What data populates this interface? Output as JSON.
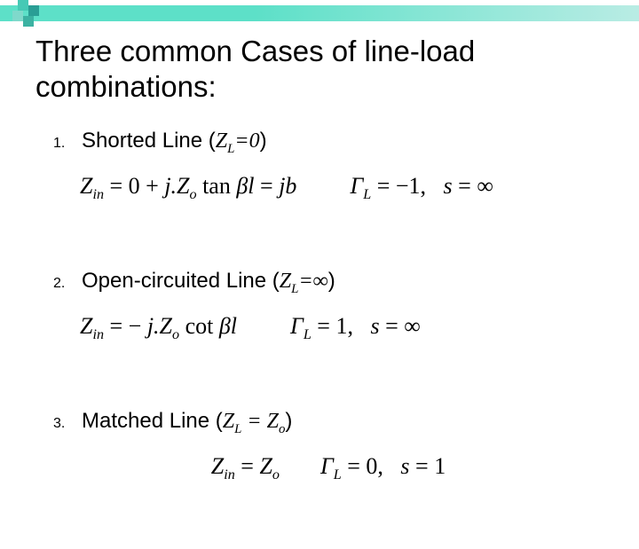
{
  "colors": {
    "bar_gradient_start": "#5de0c8",
    "bar_gradient_end": "#b9ece4",
    "logo_squares": [
      "#46c9b5",
      "#2a9e95",
      "#7fd9cb",
      "#3cb2a2"
    ],
    "text": "#000000",
    "background": "#ffffff"
  },
  "typography": {
    "title_fontsize": 33,
    "list_fontsize": 24,
    "equation_fontsize": 26,
    "number_fontsize": 16,
    "title_family": "Arial",
    "equation_family": "Times New Roman"
  },
  "title": "Three common Cases of line-load combinations:",
  "cases": [
    {
      "number": "1.",
      "label": "Shorted Line",
      "condition_prefix": " (",
      "condition_var": "Z",
      "condition_sub": "L",
      "condition_eq_rhs": "=0",
      "condition_suffix": ")",
      "eq_left_html": "Z<sub>in</sub> <span class='up'>= 0 +</span> j.Z<sub>o</sub> <span class='up'>tan</span> βl <span class='up'>=</span> jb",
      "eq_right_html": "Γ<sub>L</sub> <span class='up'>= −1,</span>&nbsp;&nbsp; s <span class='up'>= ∞</span>"
    },
    {
      "number": "2.",
      "label": "Open-circuited Line",
      "condition_prefix": " (",
      "condition_var": "Z",
      "condition_sub": "L",
      "condition_eq_rhs": "=∞",
      "condition_suffix": ")",
      "eq_left_html": "Z<sub>in</sub> <span class='up'>= −</span> j.Z<sub>o</sub> <span class='up'>cot</span> βl",
      "eq_right_html": "Γ<sub>L</sub> <span class='up'>= 1,</span>&nbsp;&nbsp; s <span class='up'>= ∞</span>"
    },
    {
      "number": "3.",
      "label": "Matched Line",
      "condition_prefix": " (",
      "condition_var": "Z",
      "condition_sub": "L",
      "condition_eq_rhs_var": " = Z",
      "condition_eq_rhs_sub": "o",
      "condition_suffix": ")",
      "eq_left_html": "Z<sub>in</sub> <span class='up'>=</span> Z<sub>o</sub>",
      "eq_right_html": "Γ<sub>L</sub> <span class='up'>= 0,</span>&nbsp;&nbsp; s <span class='up'>= 1</span>"
    }
  ]
}
